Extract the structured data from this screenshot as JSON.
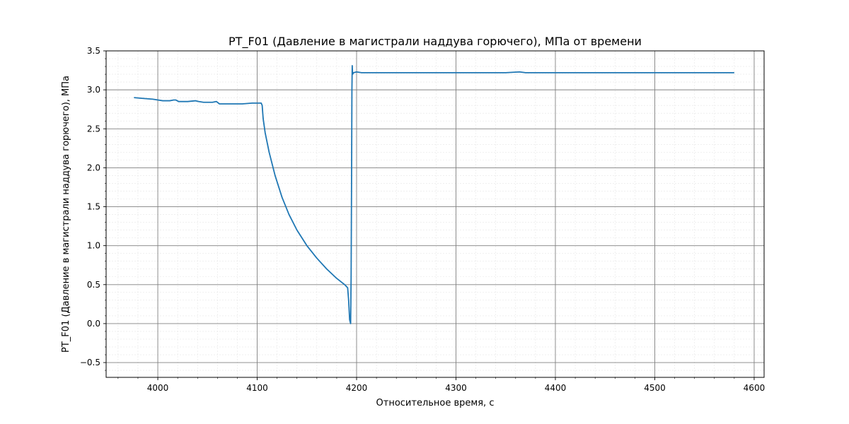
{
  "chart_data": {
    "type": "line",
    "title": "PT_F01 (Давление в магистрали наддува горючего), МПа от времени",
    "xlabel": "Относительное время, с",
    "ylabel": "PT_F01 (Давление в магистрали наддува горючего), МПа",
    "xlim": [
      3948,
      4610
    ],
    "ylim": [
      -0.69,
      3.5
    ],
    "xticks": [
      4000,
      4100,
      4200,
      4300,
      4400,
      4500,
      4600
    ],
    "yticks": [
      -0.5,
      0.0,
      0.5,
      1.0,
      1.5,
      2.0,
      2.5,
      3.0,
      3.5
    ],
    "xtick_labels": [
      "4000",
      "4100",
      "4200",
      "4300",
      "4400",
      "4500",
      "4600"
    ],
    "ytick_labels": [
      "−0.5",
      "0.0",
      "0.5",
      "1.0",
      "1.5",
      "2.0",
      "2.5",
      "3.0",
      "3.5"
    ],
    "grid": "major and minor",
    "line_color": "#1f77b4",
    "series": [
      {
        "name": "PT_F01",
        "x": [
          3976,
          3985,
          3995,
          4005,
          4012,
          4016,
          4018,
          4021,
          4030,
          4038,
          4041,
          4046,
          4055,
          4059,
          4062,
          4065,
          4075,
          4085,
          4095,
          4104,
          4105,
          4106,
          4108,
          4112,
          4118,
          4125,
          4132,
          4140,
          4150,
          4160,
          4170,
          4180,
          4188,
          4191,
          4192,
          4193,
          4194,
          4194.5,
          4195,
          4195.3,
          4195.6,
          4196,
          4197,
          4200,
          4205,
          4250,
          4300,
          4350,
          4364,
          4370,
          4400,
          4450,
          4500,
          4550,
          4580
        ],
        "y": [
          2.9,
          2.89,
          2.88,
          2.86,
          2.86,
          2.87,
          2.87,
          2.85,
          2.85,
          2.86,
          2.85,
          2.84,
          2.84,
          2.85,
          2.82,
          2.82,
          2.82,
          2.82,
          2.83,
          2.83,
          2.8,
          2.63,
          2.45,
          2.2,
          1.9,
          1.62,
          1.4,
          1.2,
          1.0,
          0.84,
          0.7,
          0.58,
          0.5,
          0.46,
          0.3,
          0.05,
          0.0,
          0.6,
          2.0,
          3.0,
          3.31,
          3.2,
          3.22,
          3.23,
          3.22,
          3.22,
          3.22,
          3.22,
          3.23,
          3.22,
          3.22,
          3.22,
          3.22,
          3.22,
          3.22
        ]
      }
    ]
  }
}
